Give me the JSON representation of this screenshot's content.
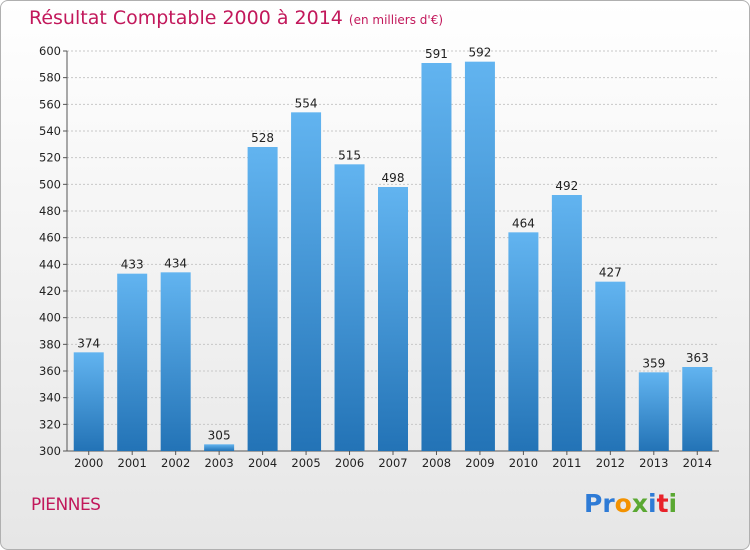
{
  "chart_data": {
    "type": "bar",
    "title": "Résultat Comptable 2000 à 2014",
    "subtitle": "(en milliers d'€)",
    "categories": [
      "2000",
      "2001",
      "2002",
      "2003",
      "2004",
      "2005",
      "2006",
      "2007",
      "2008",
      "2009",
      "2010",
      "2011",
      "2012",
      "2013",
      "2014"
    ],
    "values": [
      374,
      433,
      434,
      305,
      528,
      554,
      515,
      498,
      591,
      592,
      464,
      492,
      427,
      359,
      363
    ],
    "ylim": [
      300,
      600
    ],
    "yticks": [
      300,
      320,
      340,
      360,
      380,
      400,
      420,
      440,
      460,
      480,
      500,
      520,
      540,
      560,
      580,
      600
    ],
    "xlabel": "",
    "ylabel": "",
    "grid": true
  },
  "city": "PIENNES",
  "logo": {
    "p1": "Pr",
    "p2": "o",
    "p3": "x",
    "p4": "i",
    "p5": "t",
    "p6": "i"
  },
  "colors": {
    "bar_light": "#5eb0ee",
    "bar_dark": "#2677ba",
    "title": "#c2185b",
    "grid": "#c8c8c8"
  }
}
